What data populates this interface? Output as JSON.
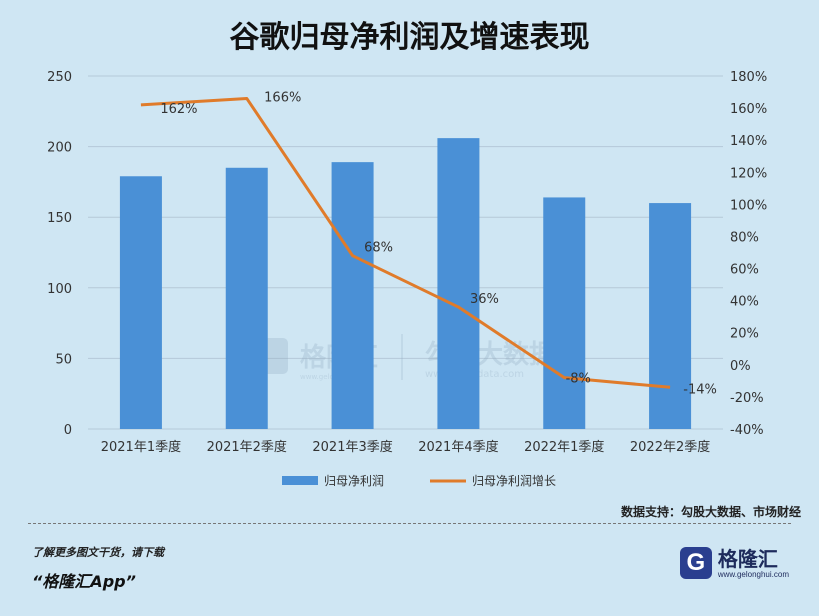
{
  "title": "谷歌归母净利润及增速表现",
  "chart_data": {
    "type": "bar",
    "categories": [
      "2021年1季度",
      "2021年2季度",
      "2021年3季度",
      "2021年4季度",
      "2022年1季度",
      "2022年2季度"
    ],
    "series": [
      {
        "name": "归母净利润",
        "type": "bar",
        "axis": "left",
        "values": [
          179,
          185,
          189,
          206,
          164,
          160
        ],
        "color": "#4a90d6"
      },
      {
        "name": "归母净利润增长",
        "type": "line",
        "axis": "right",
        "values": [
          162,
          166,
          68,
          36,
          -8,
          -14
        ],
        "labels": [
          "162%",
          "166%",
          "68%",
          "36%",
          "-8%",
          "-14%"
        ],
        "color": "#e07b2a"
      }
    ],
    "y_left": {
      "min": 0,
      "max": 250,
      "ticks": [
        0,
        50,
        100,
        150,
        200,
        250
      ]
    },
    "y_right": {
      "min": -40,
      "max": 180,
      "ticks": [
        "-40%",
        "-20%",
        "0%",
        "20%",
        "40%",
        "60%",
        "80%",
        "100%",
        "120%",
        "140%",
        "160%",
        "180%"
      ]
    },
    "grid": true,
    "legend_position": "bottom"
  },
  "watermark": {
    "brand": "格隆汇",
    "url": "www.gelonghui.com",
    "partner": "勾股大数据",
    "partner_url": "www.gogudata.com"
  },
  "source": "数据支持：勾股大数据、市场财经",
  "footer": {
    "note": "了解更多图文干货，请下载",
    "app": "“格隆汇App”"
  },
  "logo": {
    "mark": "G",
    "name": "格隆汇",
    "url": "www.gelonghui.com"
  }
}
